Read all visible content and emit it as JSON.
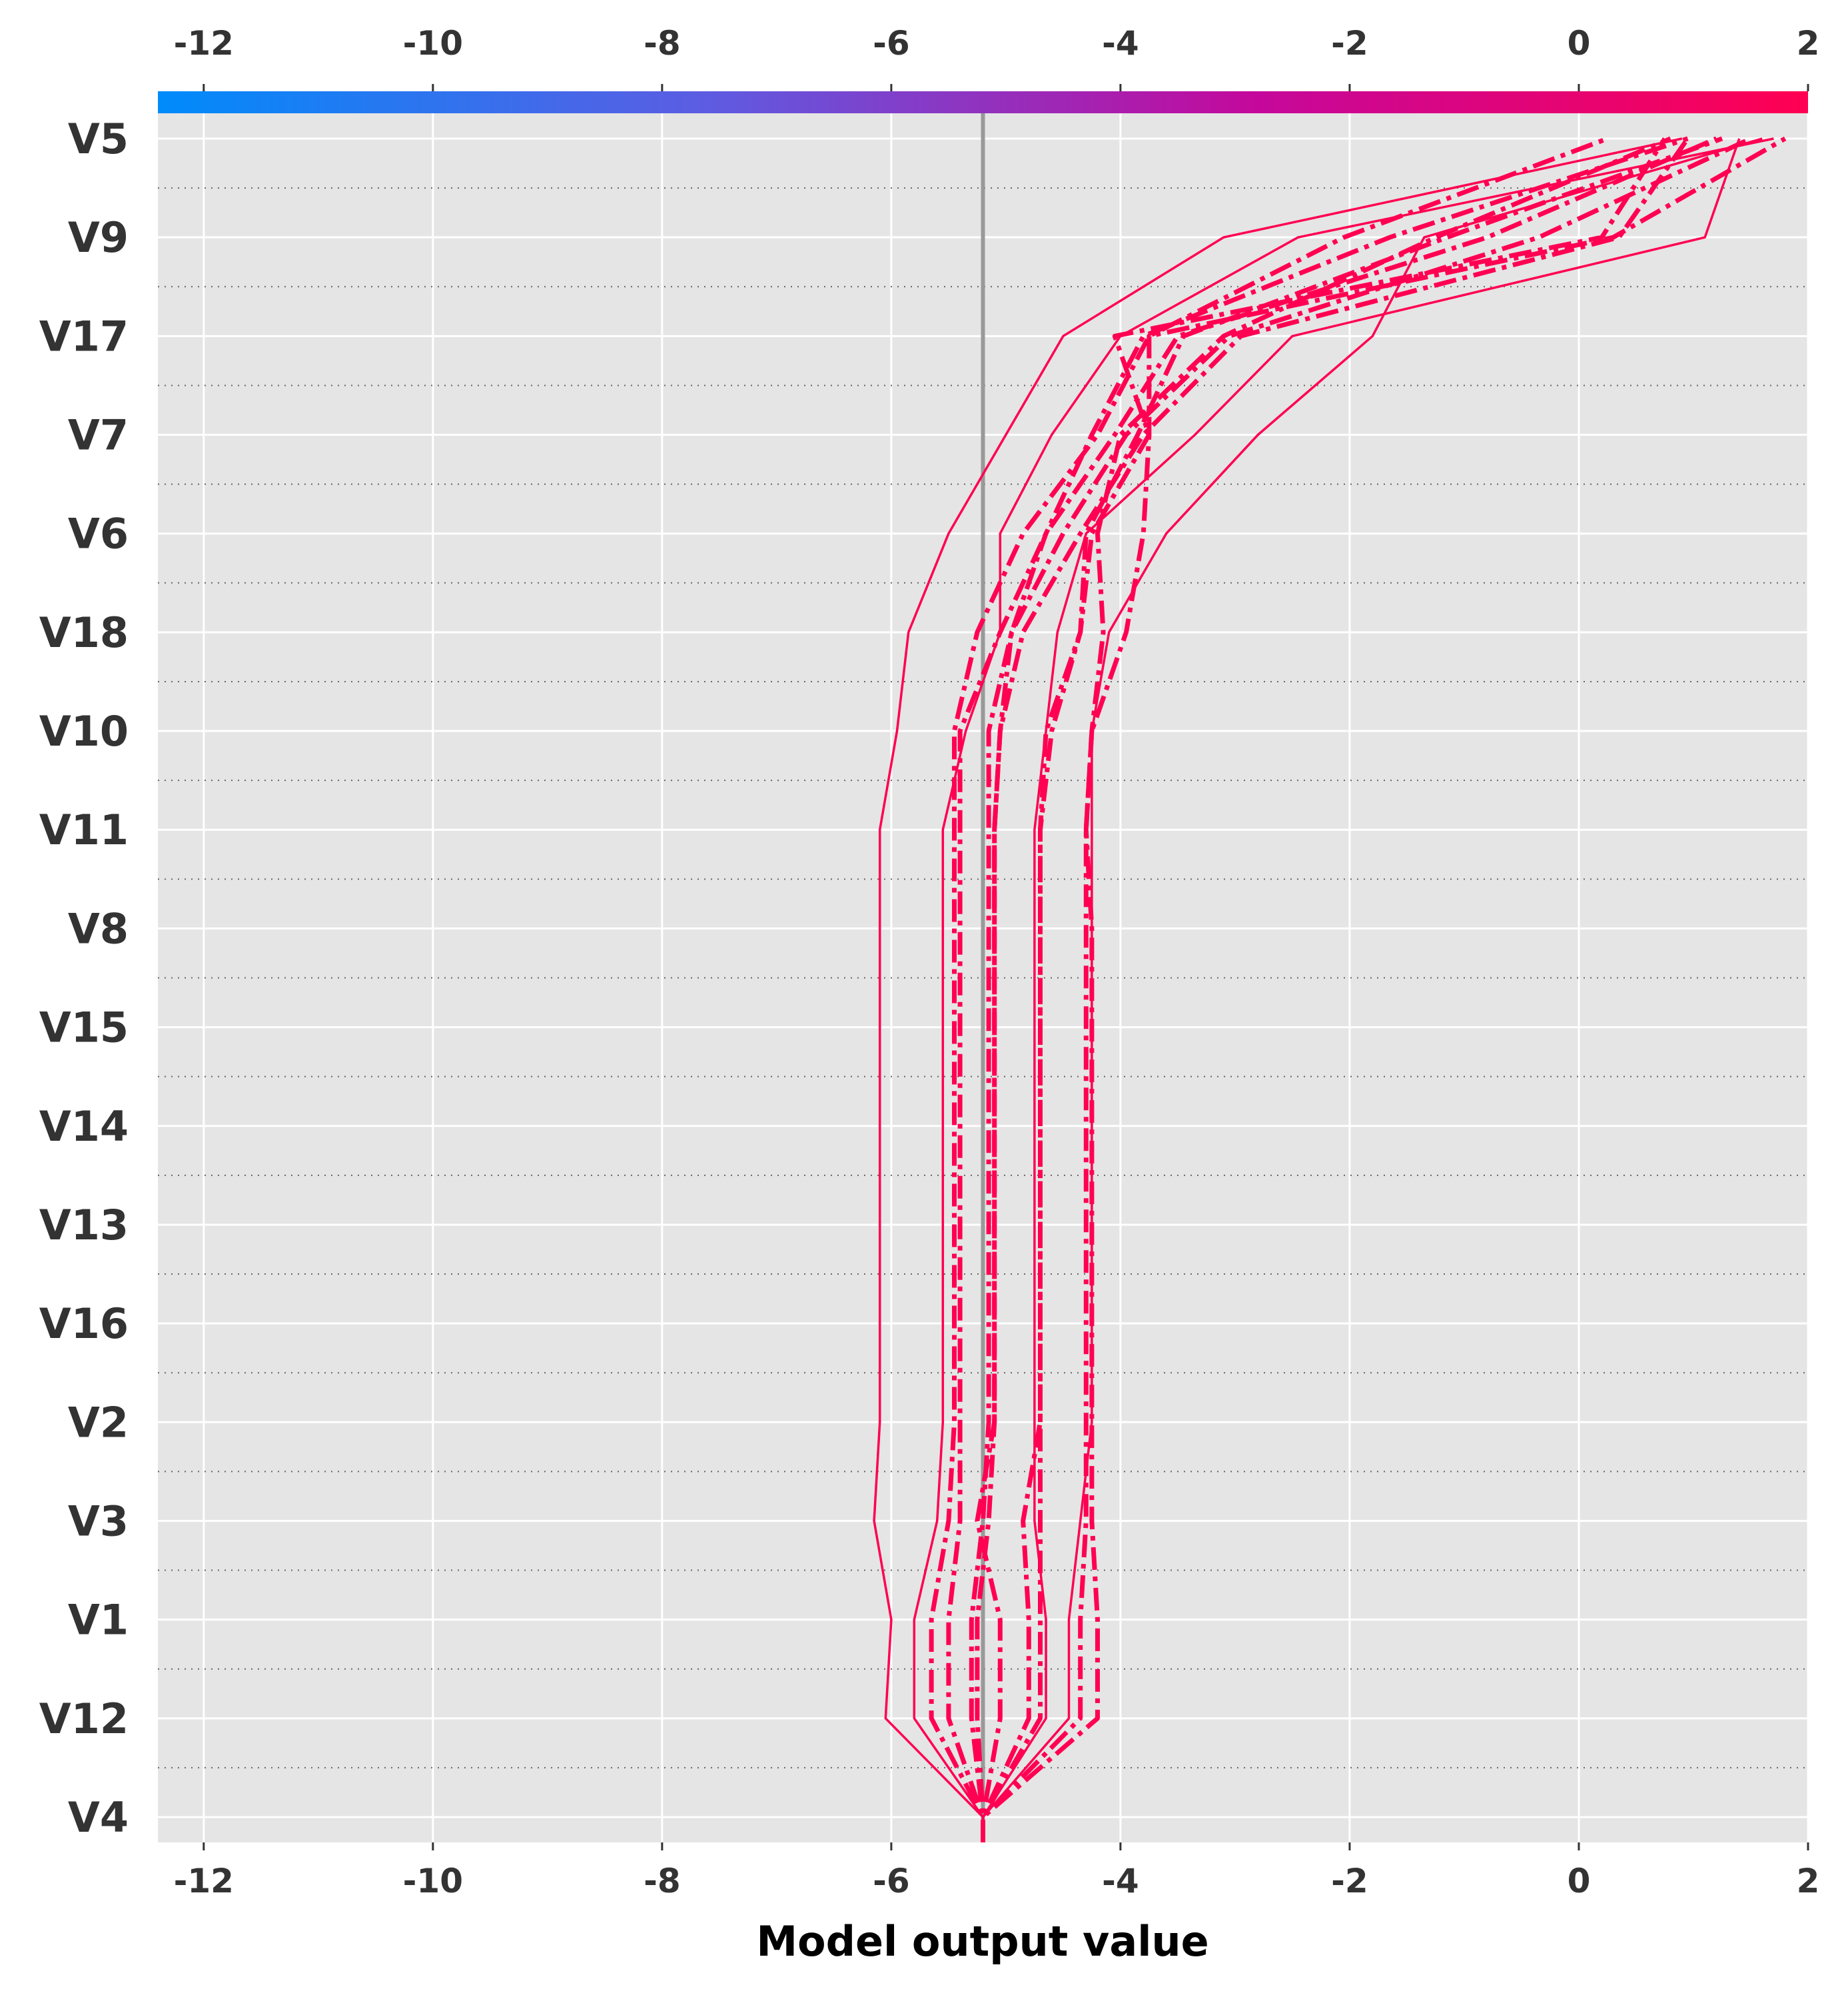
{
  "chart_data": {
    "type": "line",
    "subtype": "decision_plot",
    "title": "",
    "xlabel": "Model output value",
    "ylabel": "",
    "xlim": [
      -12.4,
      2.0
    ],
    "x_ticks": [
      -12,
      -10,
      -8,
      -6,
      -4,
      -2,
      0,
      2
    ],
    "x_tick_labels": [
      "-12",
      "-10",
      "-8",
      "-6",
      "-4",
      "-2",
      "0",
      "2"
    ],
    "base_value": -5.2,
    "features": [
      "V4",
      "V12",
      "V1",
      "V3",
      "V2",
      "V16",
      "V13",
      "V14",
      "V15",
      "V8",
      "V11",
      "V10",
      "V18",
      "V6",
      "V7",
      "V17",
      "V9",
      "V5"
    ],
    "grid": true,
    "colorbar": {
      "position": "top",
      "colors": [
        "#008bfb",
        "#5d5ce2",
        "#c5089b",
        "#ff0052"
      ]
    },
    "line_color": "#ff0052",
    "series": [
      {
        "style": "solid",
        "values": [
          -5.2,
          -6.05,
          -6.0,
          -6.15,
          -6.1,
          -6.1,
          -6.1,
          -6.1,
          -6.1,
          -6.1,
          -6.1,
          -5.95,
          -5.85,
          -5.5,
          -5.0,
          -4.5,
          -3.1,
          0.9
        ]
      },
      {
        "style": "solid",
        "values": [
          -5.2,
          -5.8,
          -5.8,
          -5.6,
          -5.55,
          -5.55,
          -5.55,
          -5.55,
          -5.55,
          -5.55,
          -5.55,
          -5.35,
          -5.05,
          -5.05,
          -4.6,
          -4.0,
          -2.45,
          1.7
        ]
      },
      {
        "style": "solid",
        "values": [
          -5.2,
          -4.45,
          -4.45,
          -4.35,
          -4.25,
          -4.25,
          -4.25,
          -4.25,
          -4.25,
          -4.25,
          -4.25,
          -4.25,
          -4.1,
          -3.6,
          -2.8,
          -1.8,
          -1.35,
          1.6
        ]
      },
      {
        "style": "solid",
        "values": [
          -5.2,
          -4.65,
          -4.65,
          -4.75,
          -4.75,
          -4.75,
          -4.75,
          -4.75,
          -4.75,
          -4.75,
          -4.75,
          -4.65,
          -4.55,
          -4.3,
          -3.35,
          -2.5,
          1.1,
          1.4
        ]
      },
      {
        "style": "dashdot",
        "values": [
          -5.2,
          -5.65,
          -5.65,
          -5.5,
          -5.45,
          -5.45,
          -5.45,
          -5.45,
          -5.45,
          -5.45,
          -5.45,
          -5.45,
          -5.25,
          -4.85,
          -4.2,
          -3.75,
          -2.05,
          0.25
        ]
      },
      {
        "style": "dashdot",
        "values": [
          -5.2,
          -5.5,
          -5.5,
          -5.4,
          -5.4,
          -5.4,
          -5.4,
          -5.4,
          -5.4,
          -5.4,
          -5.4,
          -5.4,
          -5.05,
          -4.65,
          -4.05,
          -3.5,
          -0.8,
          1.2
        ]
      },
      {
        "style": "dashdot",
        "values": [
          -5.2,
          -5.3,
          -5.3,
          -5.2,
          -5.15,
          -5.15,
          -5.15,
          -5.15,
          -5.15,
          -5.15,
          -5.15,
          -5.15,
          -4.95,
          -4.65,
          -4.25,
          -3.8,
          -1.65,
          0.95
        ]
      },
      {
        "style": "dashdot",
        "values": [
          -5.2,
          -5.25,
          -5.25,
          -5.15,
          -5.1,
          -5.1,
          -5.1,
          -5.1,
          -5.1,
          -5.1,
          -5.1,
          -5.05,
          -4.95,
          -4.5,
          -3.95,
          -3.05,
          -0.35,
          1.5
        ]
      },
      {
        "style": "dashdot",
        "values": [
          -5.2,
          -5.05,
          -5.05,
          -5.25,
          -5.1,
          -5.1,
          -5.1,
          -5.1,
          -5.1,
          -5.1,
          -5.1,
          -5.05,
          -4.85,
          -4.35,
          -3.8,
          -2.95,
          0.35,
          0.95
        ]
      },
      {
        "style": "dashdot",
        "values": [
          -5.2,
          -4.8,
          -4.8,
          -4.85,
          -4.7,
          -4.7,
          -4.7,
          -4.7,
          -4.7,
          -4.7,
          -4.7,
          -4.65,
          -4.35,
          -4.3,
          -3.85,
          -3.45,
          -1.15,
          1.25
        ]
      },
      {
        "style": "dashdot",
        "values": [
          -5.2,
          -4.7,
          -4.7,
          -4.7,
          -4.7,
          -4.7,
          -4.7,
          -4.7,
          -4.7,
          -4.7,
          -4.7,
          -4.6,
          -4.35,
          -4.25,
          -3.75,
          -4.05,
          0.2,
          0.75
        ]
      },
      {
        "style": "dashdot",
        "values": [
          -5.2,
          -4.35,
          -4.35,
          -4.3,
          -4.3,
          -4.3,
          -4.3,
          -4.3,
          -4.3,
          -4.3,
          -4.3,
          -4.25,
          -4.15,
          -4.2,
          -4.0,
          -3.1,
          -1.25,
          0.8
        ]
      },
      {
        "style": "dashdot",
        "values": [
          -5.2,
          -4.2,
          -4.2,
          -4.25,
          -4.25,
          -4.25,
          -4.25,
          -4.25,
          -4.25,
          -4.25,
          -4.3,
          -4.25,
          -3.95,
          -3.8,
          -3.75,
          -3.75,
          0.3,
          1.8
        ]
      }
    ]
  }
}
